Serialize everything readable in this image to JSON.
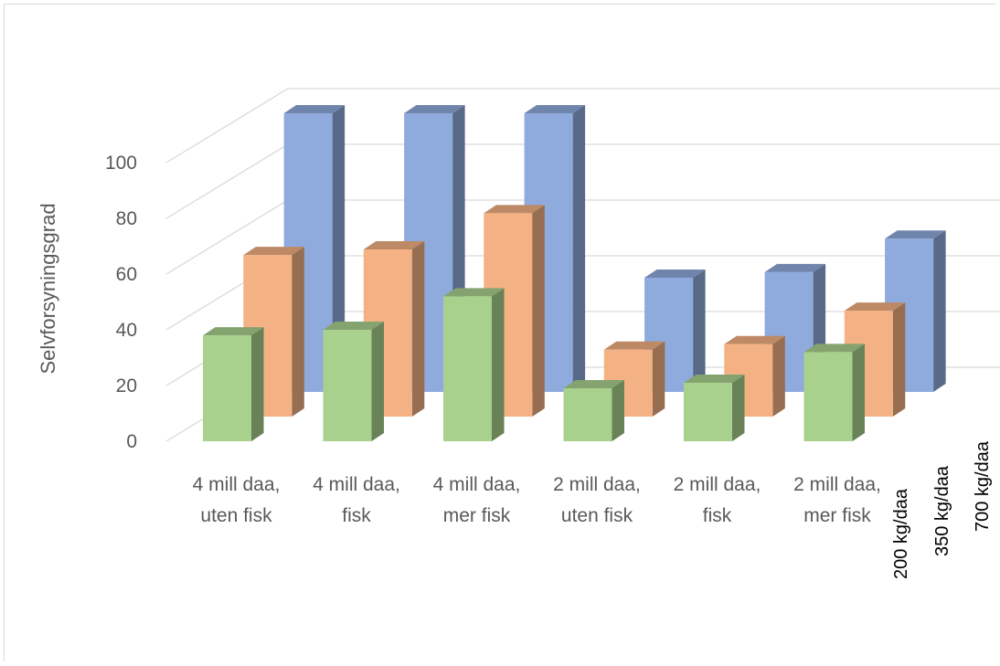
{
  "chart_data": {
    "type": "bar",
    "subtype": "3d-column",
    "ylabel": "Selvforsyningsgrad",
    "ylim": [
      0,
      100
    ],
    "yticks": [
      "0",
      "20",
      "40",
      "60",
      "80",
      "100"
    ],
    "categories": [
      [
        "4 mill daa,",
        "uten fisk"
      ],
      [
        "4 mill daa,",
        "fisk"
      ],
      [
        "4 mill daa,",
        "mer fisk"
      ],
      [
        "2 mill daa,",
        "uten fisk"
      ],
      [
        "2 mill daa,",
        "fisk"
      ],
      [
        "2 mill daa,",
        "mer fisk"
      ]
    ],
    "series": [
      {
        "name": "200 kg/daa",
        "values": [
          38,
          40,
          52,
          19,
          21,
          32
        ],
        "color": "#a9d18e"
      },
      {
        "name": "350 kg/daa",
        "values": [
          58,
          60,
          73,
          24,
          26,
          38
        ],
        "color": "#f4b183"
      },
      {
        "name": "700 kg/daa",
        "values": [
          100,
          100,
          100,
          41,
          43,
          55
        ],
        "color": "#8faadc"
      }
    ],
    "grid": true
  }
}
